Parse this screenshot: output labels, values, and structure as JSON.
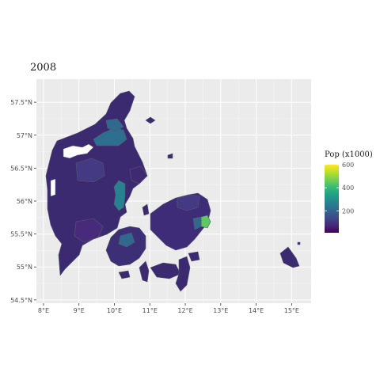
{
  "chart": {
    "title": "2008",
    "legend_title": "Pop (x1000)"
  },
  "chart_data": {
    "type": "choropleth",
    "title": "2008",
    "legend": {
      "title": "Pop (x1000)",
      "placement": "right",
      "ticks": [
        200,
        400,
        600
      ],
      "range": [
        10,
        600
      ],
      "palette": "viridis",
      "colors": [
        "#440154",
        "#482878",
        "#3e4a89",
        "#31688e",
        "#26828e",
        "#1f9e89",
        "#35b779",
        "#6ece58",
        "#b5de2b",
        "#fde725"
      ]
    },
    "x_axis": {
      "ticks": [
        8,
        9,
        10,
        11,
        12,
        13,
        14,
        15
      ],
      "labels": [
        "8°E",
        "9°E",
        "10°E",
        "11°E",
        "12°E",
        "13°E",
        "14°E",
        "15°E"
      ],
      "range": [
        7.8,
        15.55
      ]
    },
    "y_axis": {
      "ticks": [
        54.5,
        55,
        55.5,
        56,
        56.5,
        57,
        57.5
      ],
      "labels": [
        "54.5°N",
        "55°N",
        "55.5°N",
        "56°N",
        "56.5°N",
        "57°N",
        "57.5°N"
      ],
      "range": [
        54.45,
        57.85
      ]
    },
    "grid": true,
    "regions": [
      {
        "lon": 9.92,
        "lat": 57.05,
        "value": 195
      },
      {
        "lon": 10.2,
        "lat": 56.16,
        "value": 300
      },
      {
        "lon": 10.38,
        "lat": 55.4,
        "value": 187
      },
      {
        "lon": 12.57,
        "lat": 55.68,
        "value": 503
      },
      {
        "lon": 9.53,
        "lat": 55.47,
        "value": 95
      },
      {
        "lon": 9.45,
        "lat": 56.45,
        "value": 95
      },
      {
        "lon": 8.45,
        "lat": 55.48,
        "value": 114
      },
      {
        "lon": 9.2,
        "lat": 56.15,
        "value": 86
      },
      {
        "lon": 11.88,
        "lat": 55.63,
        "value": 82
      }
    ]
  }
}
